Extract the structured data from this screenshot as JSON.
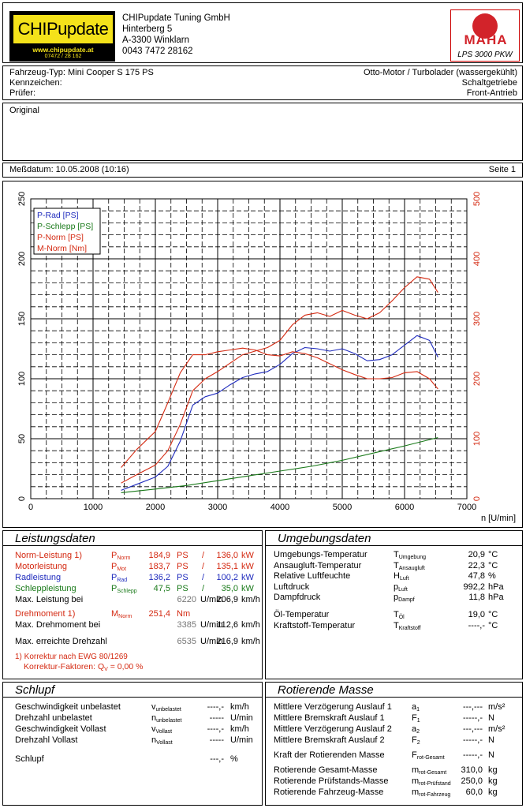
{
  "header": {
    "logo_text": "CHIPupdate",
    "logo_url": "www.chipupdate.at",
    "logo_tel": "07472 / 28 162",
    "company_lines": [
      "CHIPupdate Tuning GmbH",
      "Hinterberg 5",
      "A-3300 Winklarn",
      "0043 7472 28162"
    ],
    "maha_word": "MAHA",
    "maha_model": "LPS 3000 PKW"
  },
  "vehicle": {
    "fahrzeug_label": "Fahrzeug-Typ:",
    "fahrzeug_value": "Mini Cooper S 175 PS",
    "kennzeichen_label": "Kennzeichen:",
    "pruefer_label": "Prüfer:",
    "motor": "Otto-Motor / Turbolader (wassergekühlt)",
    "getriebe": "Schaltgetriebe",
    "antrieb": "Front-Antrieb"
  },
  "remark": "Original",
  "measure": {
    "date_label": "Meßdatum: 10.05.2008 (10:16)",
    "page_label": "Seite 1"
  },
  "chart_data": {
    "type": "line",
    "xlabel": "n [U/min]",
    "x_ticks": [
      0,
      1000,
      2000,
      3000,
      4000,
      5000,
      6000,
      7000
    ],
    "y_left_ticks": [
      0,
      50,
      100,
      150,
      200,
      250
    ],
    "y_right_ticks": [
      0,
      100,
      200,
      300,
      400,
      500
    ],
    "xlim": [
      0,
      7000
    ],
    "ylim_left": [
      0,
      250
    ],
    "ylim_right": [
      0,
      500
    ],
    "grid": true,
    "legend_position": "top-left",
    "series": [
      {
        "name": "P-Rad [PS]",
        "color": "#1f2bbd",
        "axis": "left",
        "x": [
          1450,
          1700,
          2000,
          2200,
          2400,
          2600,
          2800,
          3000,
          3200,
          3400,
          3600,
          3800,
          4000,
          4200,
          4400,
          4600,
          4800,
          5000,
          5200,
          5400,
          5600,
          5800,
          6000,
          6200,
          6400,
          6535
        ],
        "y": [
          7,
          12,
          18,
          27,
          48,
          78,
          85,
          88,
          95,
          101,
          104,
          106,
          112,
          121,
          126,
          125,
          123,
          125,
          121,
          115,
          116,
          120,
          128,
          136,
          132,
          118
        ]
      },
      {
        "name": "P-Schlepp [PS]",
        "color": "#1a7a1a",
        "axis": "left",
        "x": [
          1450,
          2000,
          2500,
          3000,
          3500,
          4000,
          4500,
          5000,
          5500,
          6000,
          6535
        ],
        "y": [
          5,
          8,
          11,
          15,
          19,
          23,
          27,
          32,
          38,
          44,
          51
        ]
      },
      {
        "name": "P-Norm [PS]",
        "color": "#d42a12",
        "axis": "left",
        "x": [
          1450,
          1700,
          2000,
          2200,
          2400,
          2600,
          2800,
          3000,
          3200,
          3400,
          3600,
          3800,
          4000,
          4200,
          4400,
          4600,
          4800,
          5000,
          5200,
          5400,
          5600,
          5800,
          6000,
          6200,
          6400,
          6535
        ],
        "y": [
          13,
          20,
          28,
          40,
          62,
          90,
          100,
          106,
          113,
          120,
          123,
          126,
          132,
          145,
          153,
          155,
          152,
          157,
          153,
          150,
          155,
          165,
          176,
          185,
          183,
          172
        ]
      },
      {
        "name": "M-Norm [Nm]",
        "color": "#d42a12",
        "axis": "right",
        "x": [
          1450,
          1700,
          2000,
          2200,
          2400,
          2600,
          2800,
          3000,
          3200,
          3400,
          3600,
          3800,
          4000,
          4200,
          4400,
          4600,
          4800,
          5000,
          5200,
          5400,
          5600,
          5800,
          6000,
          6200,
          6400,
          6535
        ],
        "y": [
          52,
          82,
          112,
          160,
          210,
          240,
          240,
          245,
          248,
          251,
          248,
          240,
          238,
          245,
          242,
          235,
          225,
          215,
          207,
          200,
          200,
          202,
          210,
          212,
          200,
          183
        ]
      }
    ]
  },
  "leistung": {
    "title": "Leistungsdaten",
    "rows": [
      {
        "label": "Norm-Leistung 1)",
        "sym": "P",
        "sub": "Norm",
        "v1": "184,9",
        "u1": "PS",
        "sep": "/",
        "v2": "136,0",
        "u2": "kW",
        "color": "red"
      },
      {
        "label": "Motorleistung",
        "sym": "P",
        "sub": "Mot",
        "v1": "183,7",
        "u1": "PS",
        "sep": "/",
        "v2": "135,1",
        "u2": "kW",
        "color": "red"
      },
      {
        "label": "Radleistung",
        "sym": "P",
        "sub": "Rad",
        "v1": "136,2",
        "u1": "PS",
        "sep": "/",
        "v2": "100,2",
        "u2": "kW",
        "color": "blue"
      },
      {
        "label": "Schleppleistung",
        "sym": "P",
        "sub": "Schlepp",
        "v1": "47,5",
        "u1": "PS",
        "sep": "/",
        "v2": "35,0",
        "u2": "kW",
        "color": "green"
      }
    ],
    "max_leistung_label": "Max. Leistung bei",
    "max_leistung_rpm": "6220",
    "max_leistung_speed": "206,9",
    "drehmoment_label": "Drehmoment 1)",
    "drehmoment_sym": "M",
    "drehmoment_sub": "Norm",
    "drehmoment_value": "251,4",
    "drehmoment_unit": "Nm",
    "max_dreh_label": "Max. Drehmoment bei",
    "max_dreh_rpm": "3385",
    "max_dreh_speed": "112,6",
    "max_drehzahl_label": "Max. erreichte Drehzahl",
    "max_drehzahl_rpm": "6535",
    "max_drehzahl_speed": "216,9",
    "rpm_unit": "U/min",
    "speed_unit": "km/h",
    "footnote1": "1) Korrektur nach EWG 80/1269",
    "footnote2_label": "Korrektur-Faktoren: Q",
    "footnote2_sub": "V",
    "footnote2_value": "= 0,00 %"
  },
  "umgebung": {
    "title": "Umgebungsdaten",
    "rows": [
      {
        "label": "Umgebungs-Temperatur",
        "sym": "T",
        "sub": "Umgebung",
        "value": "20,9",
        "unit": "°C"
      },
      {
        "label": "Ansaugluft-Temperatur",
        "sym": "T",
        "sub": "Ansaugluft",
        "value": "22,3",
        "unit": "°C"
      },
      {
        "label": "Relative Luftfeuchte",
        "sym": "H",
        "sub": "Luft",
        "value": "47,8",
        "unit": "%"
      },
      {
        "label": "Luftdruck",
        "sym": "p",
        "sub": "Luft",
        "value": "992,2",
        "unit": "hPa"
      },
      {
        "label": "Dampfdruck",
        "sym": "p",
        "sub": "Dampf",
        "value": "11,8",
        "unit": "hPa"
      },
      {
        "label": "Öl-Temperatur",
        "sym": "T",
        "sub": "Öl",
        "value": "19,0",
        "unit": "°C"
      },
      {
        "label": "Kraftstoff-Temperatur",
        "sym": "T",
        "sub": "Kraftstoff",
        "value": "----,-",
        "unit": "°C"
      }
    ]
  },
  "schlupf": {
    "title": "Schlupf",
    "rows": [
      {
        "label": "Geschwindigkeit unbelastet",
        "sym": "v",
        "sub": "unbelastet",
        "value": "----,-",
        "unit": "km/h"
      },
      {
        "label": "Drehzahl unbelastet",
        "sym": "n",
        "sub": "unbelastet",
        "value": "-----",
        "unit": "U/min"
      },
      {
        "label": "Geschwindigkeit Vollast",
        "sym": "v",
        "sub": "Vollast",
        "value": "----,-",
        "unit": "km/h"
      },
      {
        "label": "Drehzahl Vollast",
        "sym": "n",
        "sub": "Vollast",
        "value": "-----",
        "unit": "U/min"
      },
      {
        "label": "Schlupf",
        "sym": "",
        "sub": "",
        "value": "---,-",
        "unit": "%"
      }
    ]
  },
  "masse": {
    "title": "Rotierende Masse",
    "rows": [
      {
        "label": "Mittlere Verzögerung Auslauf 1",
        "sym": "a",
        "sub": "1",
        "value": "---,---",
        "unit": "m/s²"
      },
      {
        "label": "Mittlere Bremskraft Auslauf 1",
        "sym": "F",
        "sub": "1",
        "value": "-----,-",
        "unit": "N"
      },
      {
        "label": "Mittlere Verzögerung Auslauf 2",
        "sym": "a",
        "sub": "2",
        "value": "---,---",
        "unit": "m/s²"
      },
      {
        "label": "Mittlere Bremskraft Auslauf 2",
        "sym": "F",
        "sub": "2",
        "value": "-----,-",
        "unit": "N"
      },
      {
        "label": "Kraft der Rotierenden Masse",
        "sym": "F",
        "sub": "rot-Gesamt",
        "value": "-----,-",
        "unit": "N"
      },
      {
        "label": "Rotierende Gesamt-Masse",
        "sym": "m",
        "sub": "rot-Gesamt",
        "value": "310,0",
        "unit": "kg"
      },
      {
        "label": "Rotierende Prüfstands-Masse",
        "sym": "m",
        "sub": "rot-Prüfstand",
        "value": "250,0",
        "unit": "kg"
      },
      {
        "label": "Rotierende Fahrzeug-Masse",
        "sym": "m",
        "sub": "rot-Fahrzeug",
        "value": "60,0",
        "unit": "kg"
      }
    ]
  }
}
